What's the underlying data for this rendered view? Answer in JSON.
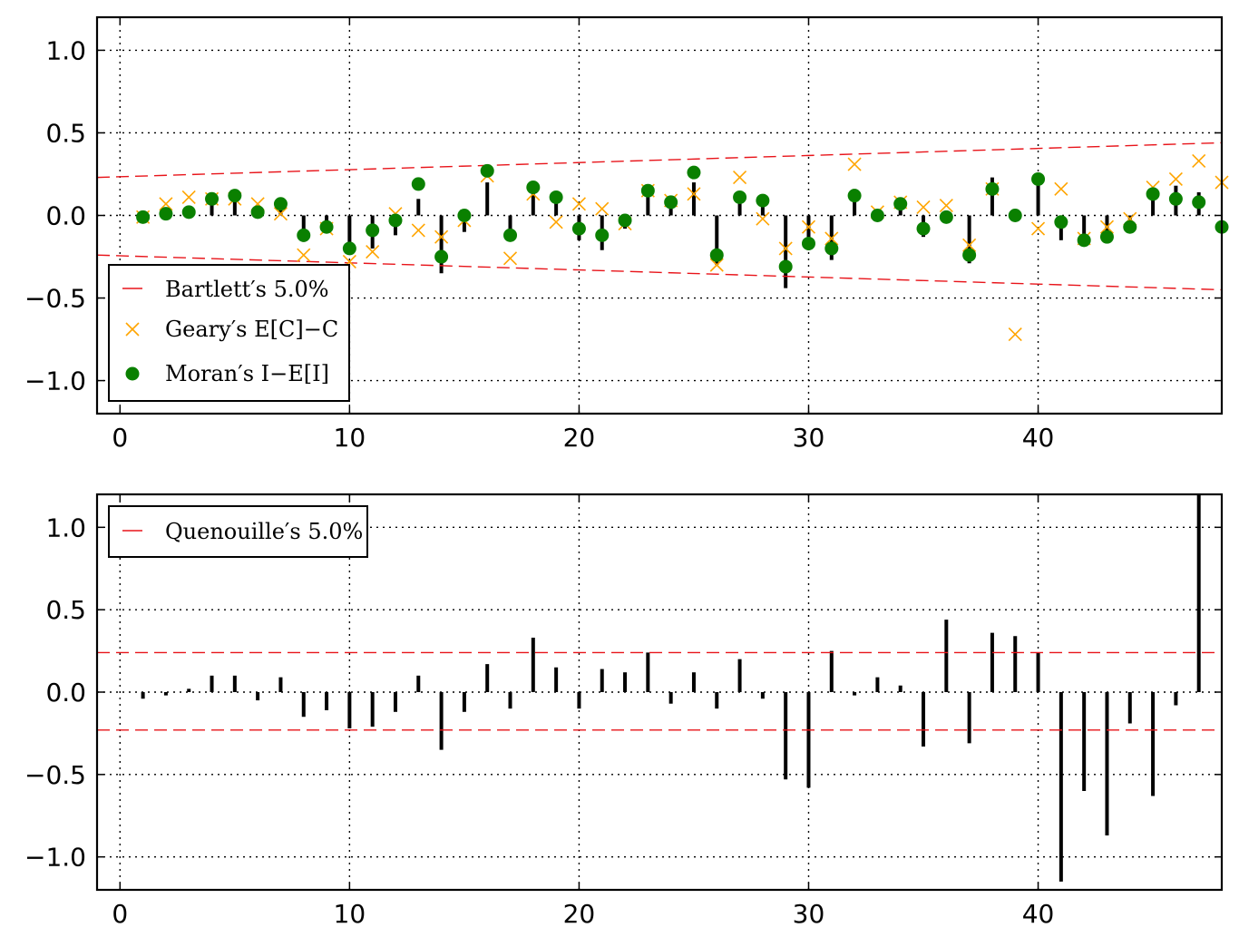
{
  "chart_data": [
    {
      "type": "scatter",
      "xlim": [
        -1,
        48
      ],
      "ylim": [
        -1.2,
        1.2
      ],
      "xticks": [
        0,
        10,
        20,
        30,
        40
      ],
      "yticks": [
        1.0,
        0.5,
        0.0,
        -0.5,
        -1.0
      ],
      "xtick_labels": [
        "0",
        "10",
        "20",
        "30",
        "40"
      ],
      "ytick_labels": [
        "1.0",
        "0.5",
        "0.0",
        "−0.5",
        "−1.0"
      ],
      "grid": true,
      "legend_position": "lower-left",
      "legend": [
        "Bartlett′s 5.0%",
        "Geary′s E[C]−C",
        "Moran′s I−E[I]"
      ],
      "x": [
        1,
        2,
        3,
        4,
        5,
        6,
        7,
        8,
        9,
        10,
        11,
        12,
        13,
        14,
        15,
        16,
        17,
        18,
        19,
        20,
        21,
        22,
        23,
        24,
        25,
        26,
        27,
        28,
        29,
        30,
        31,
        32,
        33,
        34,
        35,
        36,
        37,
        38,
        39,
        40,
        41,
        42,
        43,
        44,
        45,
        46,
        47,
        48
      ],
      "moran": [
        -0.01,
        0.01,
        0.02,
        0.1,
        0.12,
        0.02,
        0.07,
        -0.12,
        -0.07,
        -0.2,
        -0.09,
        -0.03,
        0.19,
        -0.25,
        0.0,
        0.27,
        -0.12,
        0.17,
        0.11,
        -0.08,
        -0.12,
        -0.03,
        0.15,
        0.08,
        0.26,
        -0.24,
        0.11,
        0.09,
        -0.31,
        -0.17,
        -0.2,
        0.12,
        0.0,
        0.07,
        -0.08,
        -0.01,
        -0.24,
        0.16,
        0.0,
        0.22,
        -0.04,
        -0.15,
        -0.13,
        -0.07,
        0.13,
        0.1,
        0.08,
        -0.07
      ],
      "moran_stems": [
        0.0,
        0.0,
        0.0,
        0.1,
        0.12,
        0.0,
        0.07,
        -0.16,
        -0.1,
        -0.22,
        -0.2,
        -0.12,
        0.1,
        -0.35,
        -0.1,
        0.2,
        -0.11,
        0.14,
        0.13,
        -0.15,
        -0.21,
        -0.08,
        0.14,
        0.06,
        0.2,
        -0.3,
        0.12,
        0.09,
        -0.44,
        -0.21,
        -0.27,
        0.16,
        0.0,
        0.05,
        -0.13,
        -0.03,
        -0.29,
        0.23,
        0.0,
        0.23,
        -0.15,
        -0.14,
        -0.17,
        -0.1,
        0.12,
        0.18,
        0.14,
        0.0
      ],
      "geary": [
        -0.01,
        0.07,
        0.11,
        0.1,
        0.1,
        0.07,
        0.01,
        -0.24,
        -0.08,
        -0.28,
        -0.22,
        0.01,
        -0.09,
        -0.13,
        -0.03,
        0.24,
        -0.26,
        0.13,
        -0.04,
        0.07,
        0.04,
        -0.05,
        0.15,
        0.09,
        0.13,
        -0.3,
        0.23,
        -0.02,
        -0.2,
        -0.07,
        -0.14,
        0.31,
        0.02,
        0.08,
        0.05,
        0.06,
        -0.18,
        0.16,
        -0.72,
        -0.08,
        0.16,
        -0.14,
        -0.07,
        -0.02,
        0.17,
        0.22,
        0.33,
        0.2
      ],
      "bartlett_upper": [
        0.23,
        0.44
      ],
      "bartlett_lower": [
        -0.24,
        -0.45
      ],
      "bartlett_x": [
        -1,
        48
      ]
    },
    {
      "type": "bar",
      "xlim": [
        -1,
        48
      ],
      "ylim": [
        -1.2,
        1.2
      ],
      "xticks": [
        0,
        10,
        20,
        30,
        40
      ],
      "yticks": [
        1.0,
        0.5,
        0.0,
        -0.5,
        -1.0
      ],
      "xtick_labels": [
        "0",
        "10",
        "20",
        "30",
        "40"
      ],
      "ytick_labels": [
        "1.0",
        "0.5",
        "0.0",
        "−0.5",
        "−1.0"
      ],
      "grid": true,
      "legend_position": "upper-left",
      "legend": [
        "Quenouille′s 5.0%"
      ],
      "x": [
        1,
        2,
        3,
        4,
        5,
        6,
        7,
        8,
        9,
        10,
        11,
        12,
        13,
        14,
        15,
        16,
        17,
        18,
        19,
        20,
        21,
        22,
        23,
        24,
        25,
        26,
        27,
        28,
        29,
        30,
        31,
        32,
        33,
        34,
        35,
        36,
        37,
        38,
        39,
        40,
        41,
        42,
        43,
        44,
        45,
        46,
        47
      ],
      "values": [
        -0.04,
        -0.02,
        0.02,
        0.1,
        0.1,
        -0.05,
        0.09,
        -0.15,
        -0.11,
        -0.22,
        -0.21,
        -0.12,
        0.1,
        -0.35,
        -0.12,
        0.17,
        -0.1,
        0.33,
        0.15,
        -0.1,
        0.14,
        0.12,
        0.24,
        -0.07,
        0.12,
        -0.1,
        0.2,
        -0.04,
        -0.53,
        -0.58,
        0.25,
        -0.02,
        0.09,
        0.04,
        -0.33,
        0.44,
        -0.31,
        0.36,
        0.34,
        0.24,
        -1.15,
        -0.6,
        -0.87,
        -0.19,
        -0.63,
        -0.08,
        1.2
      ],
      "quenouille_upper": 0.24,
      "quenouille_lower": -0.23
    }
  ],
  "colors": {
    "moran": "#0a8000",
    "geary": "#ffa500",
    "band": "#e8141a",
    "stem": "#000000"
  }
}
